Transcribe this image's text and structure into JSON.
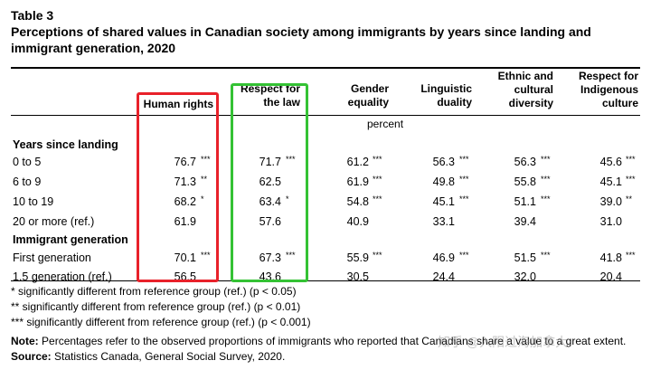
{
  "table_label": "Table 3",
  "title": "Perceptions of shared values in Canadian society among immigrants by years since landing and immigrant generation, 2020",
  "columns": [
    {
      "label": "Human rights"
    },
    {
      "label": "Respect for\nthe law"
    },
    {
      "label": "Gender\nequality"
    },
    {
      "label": "Linguistic\nduality"
    },
    {
      "label": "Ethnic and\ncultural\ndiversity"
    },
    {
      "label": "Respect for\nIndigenous\nculture"
    }
  ],
  "unit": "percent",
  "sections": [
    {
      "title": "Years since landing",
      "rows": [
        {
          "label": "0 to 5",
          "values": [
            "76.7",
            "71.7",
            "61.2",
            "56.3",
            "56.3",
            "45.6"
          ],
          "sig": [
            "***",
            "***",
            "***",
            "***",
            "***",
            "***"
          ]
        },
        {
          "label": "6 to 9",
          "values": [
            "71.3",
            "62.5",
            "61.9",
            "49.8",
            "55.8",
            "45.1"
          ],
          "sig": [
            "**",
            "",
            "***",
            "***",
            "***",
            "***"
          ]
        },
        {
          "label": "10 to 19",
          "values": [
            "68.2",
            "63.4",
            "54.8",
            "45.1",
            "51.1",
            "39.0"
          ],
          "sig": [
            "*",
            "*",
            "***",
            "***",
            "***",
            "**"
          ]
        },
        {
          "label": "20 or more (ref.)",
          "values": [
            "61.9",
            "57.6",
            "40.9",
            "33.1",
            "39.4",
            "31.0"
          ],
          "sig": [
            "",
            "",
            "",
            "",
            "",
            ""
          ]
        }
      ]
    },
    {
      "title": "Immigrant generation",
      "rows": [
        {
          "label": "First generation",
          "values": [
            "70.1",
            "67.3",
            "55.9",
            "46.9",
            "51.5",
            "41.8"
          ],
          "sig": [
            "***",
            "***",
            "***",
            "***",
            "***",
            "***"
          ]
        },
        {
          "label": "1.5 generation (ref.)",
          "values": [
            "56.5",
            "43.6",
            "30.5",
            "24.4",
            "32.0",
            "20.4"
          ],
          "sig": [
            "",
            "",
            "",
            "",
            "",
            ""
          ]
        }
      ]
    }
  ],
  "footnotes": [
    "* significantly different from reference group (ref.) (p < 0.05)",
    "** significantly different from reference group (ref.) (p < 0.01)",
    "*** significantly different from reference group (ref.) (p < 0.001)"
  ],
  "note_label": "Note:",
  "note_text": "Percentages refer to the observed proportions of immigrants who reported that Canadians share a value to a great extent.",
  "source_label": "Source:",
  "source_text": "Statistics Canada, General Social Survey, 2020.",
  "watermark": "知乎 @入阳过海加拿大",
  "highlight_colors": {
    "human_rights": "#e8212a",
    "respect_for_law": "#34c234"
  }
}
